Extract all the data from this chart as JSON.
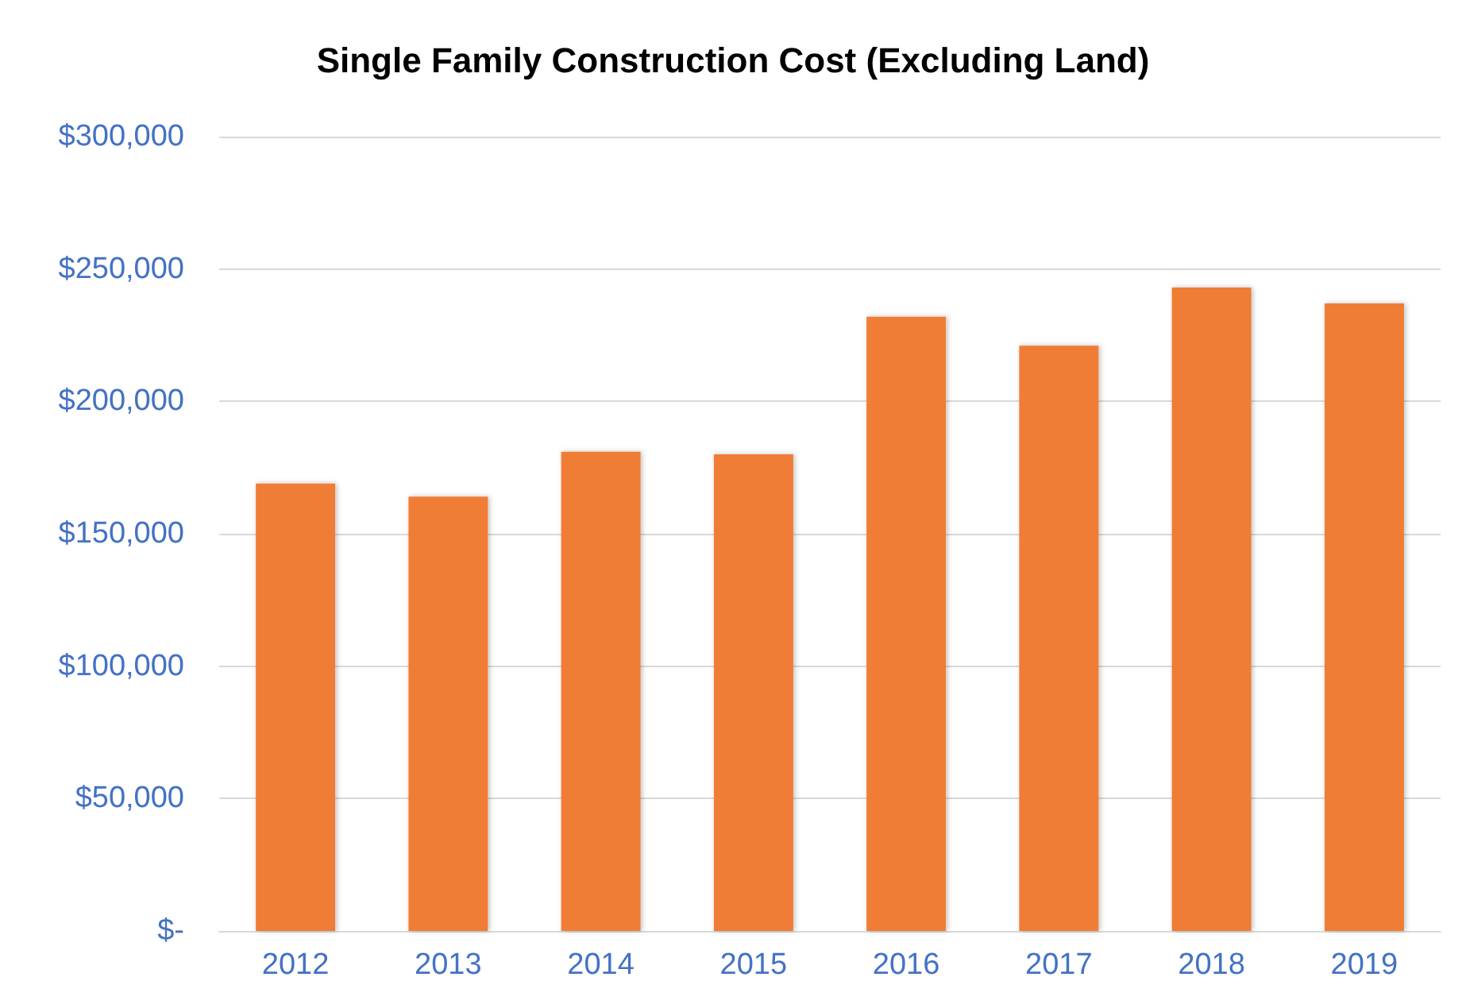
{
  "chart_data": {
    "type": "bar",
    "title": "Single Family Construction Cost (Excluding Land)",
    "categories": [
      "2012",
      "2013",
      "2014",
      "2015",
      "2016",
      "2017",
      "2018",
      "2019"
    ],
    "values": [
      169000,
      164000,
      181000,
      180000,
      232000,
      221000,
      243000,
      237000
    ],
    "color": "#f07d34",
    "ylim": [
      0,
      300000
    ],
    "yticks": [
      {
        "value": 0,
        "label": "$-"
      },
      {
        "value": 50000,
        "label": "$50,000"
      },
      {
        "value": 100000,
        "label": "$100,000"
      },
      {
        "value": 150000,
        "label": "$150,000"
      },
      {
        "value": 200000,
        "label": "$200,000"
      },
      {
        "value": 250000,
        "label": "$250,000"
      },
      {
        "value": 300000,
        "label": "$300,000"
      }
    ],
    "grid": "y"
  }
}
